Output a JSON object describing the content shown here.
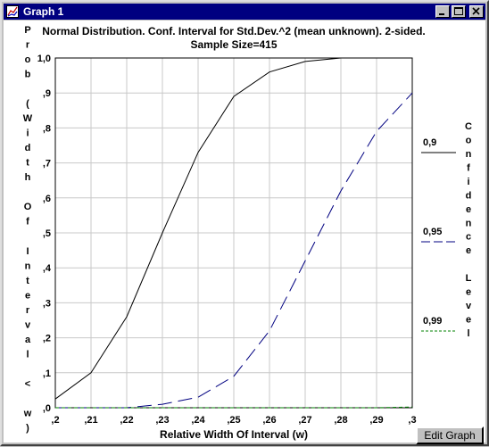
{
  "window": {
    "title": "Graph 1"
  },
  "titlebar_buttons": [
    "minimize-button",
    "maximize-button",
    "close-button"
  ],
  "edit_button": {
    "label": "Edit Graph"
  },
  "chart_data": {
    "type": "line",
    "title": "Normal Distribution. Conf. Interval for Std.Dev.^2 (mean unknown). 2-sided.",
    "subtitle": "Sample Size=415",
    "xlabel": "Relative Width Of Interval (w)",
    "ylabel": "Prob (Width Of Interval < w)",
    "xlim": [
      0.2,
      0.3
    ],
    "ylim": [
      0,
      1
    ],
    "x_ticks": [
      ",2",
      ",21",
      ",22",
      ",23",
      ",24",
      ",25",
      ",26",
      ",27",
      ",28",
      ",29",
      ",3"
    ],
    "y_ticks": [
      ",0",
      ",1",
      ",2",
      ",3",
      ",4",
      ",5",
      ",6",
      ",7",
      ",8",
      ",9",
      "1,0"
    ],
    "grid": true,
    "legend_title": "Confidence Level",
    "legend_position": "right",
    "x": [
      0.2,
      0.21,
      0.22,
      0.23,
      0.24,
      0.25,
      0.26,
      0.27,
      0.28,
      0.29,
      0.3
    ],
    "series": [
      {
        "name": "0,9",
        "color": "#000000",
        "dash": "solid",
        "values": [
          0.025,
          0.1,
          0.26,
          0.5,
          0.73,
          0.89,
          0.96,
          0.99,
          1.0,
          1.0,
          1.0
        ]
      },
      {
        "name": "0,95",
        "color": "#000080",
        "dash": "long",
        "values": [
          0.0,
          0.0,
          0.0,
          0.01,
          0.03,
          0.09,
          0.22,
          0.42,
          0.62,
          0.79,
          0.9
        ]
      },
      {
        "name": "0,99",
        "color": "#008000",
        "dash": "short",
        "values": [
          0.0,
          0.0,
          0.0,
          0.0,
          0.0,
          0.0,
          0.0,
          0.0,
          0.0,
          0.0,
          0.002
        ]
      }
    ]
  }
}
